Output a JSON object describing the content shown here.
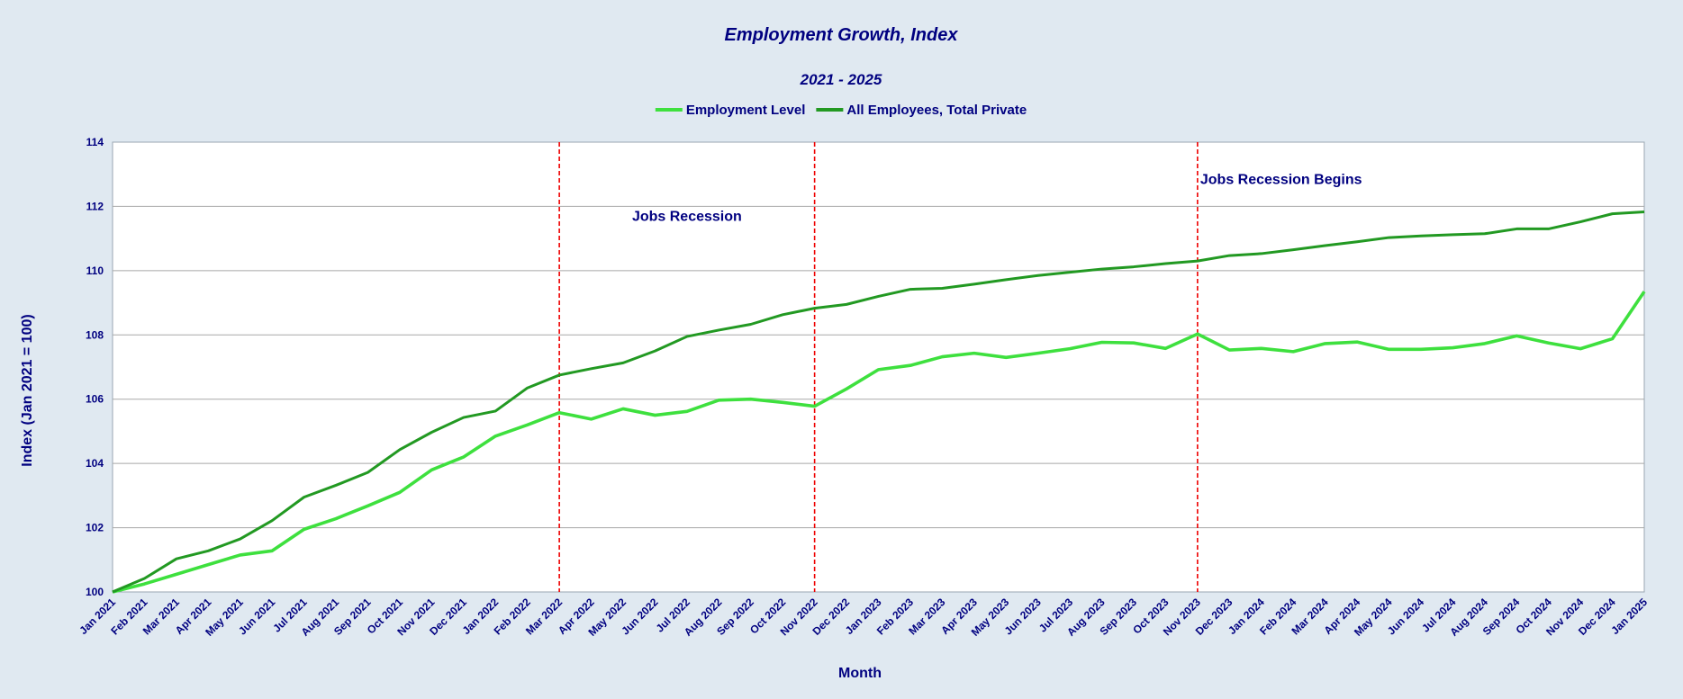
{
  "chart_data": {
    "type": "line",
    "title": "Employment Growth, Index",
    "subtitle": "2021 - 2025",
    "xlabel": "Month",
    "ylabel": "Index (Jan 2021 = 100)",
    "ylim": [
      100,
      114
    ],
    "yticks": [
      100,
      102,
      104,
      106,
      108,
      110,
      112,
      114
    ],
    "grid": true,
    "legend_position": "top-center",
    "categories": [
      "Jan 2021",
      "Feb 2021",
      "Mar 2021",
      "Apr 2021",
      "May 2021",
      "Jun 2021",
      "Jul 2021",
      "Aug 2021",
      "Sep 2021",
      "Oct 2021",
      "Nov 2021",
      "Dec 2021",
      "Jan 2022",
      "Feb 2022",
      "Mar 2022",
      "Apr 2022",
      "May 2022",
      "Jun 2022",
      "Jul 2022",
      "Aug 2022",
      "Sep 2022",
      "Oct 2022",
      "Nov 2022",
      "Dec 2022",
      "Jan 2023",
      "Feb 2023",
      "Mar 2023",
      "Apr 2023",
      "May 2023",
      "Jun 2023",
      "Jul 2023",
      "Aug 2023",
      "Sep 2023",
      "Oct 2023",
      "Nov 2023",
      "Dec 2023",
      "Jan 2024",
      "Feb 2024",
      "Mar 2024",
      "Apr 2024",
      "May 2024",
      "Jun 2024",
      "Jul 2024",
      "Aug 2024",
      "Sep 2024",
      "Oct 2024",
      "Nov 2024",
      "Dec 2024",
      "Jan 2025"
    ],
    "series": [
      {
        "name": "Employment Level",
        "color": "#3ee03e",
        "values": [
          100.0,
          100.25,
          100.55,
          100.85,
          101.15,
          101.28,
          101.95,
          102.28,
          102.68,
          103.1,
          103.8,
          104.2,
          104.85,
          105.2,
          105.58,
          105.38,
          105.7,
          105.5,
          105.62,
          105.97,
          106.0,
          105.9,
          105.78,
          106.32,
          106.92,
          107.05,
          107.32,
          107.43,
          107.3,
          107.43,
          107.57,
          107.77,
          107.75,
          107.58,
          108.03,
          107.53,
          107.58,
          107.48,
          107.73,
          107.78,
          107.55,
          107.55,
          107.6,
          107.73,
          107.97,
          107.75,
          107.57,
          107.88,
          109.35
        ]
      },
      {
        "name": "All Employees, Total Private",
        "color": "#229922",
        "values": [
          100.0,
          100.42,
          101.03,
          101.28,
          101.65,
          102.22,
          102.95,
          103.32,
          103.72,
          104.43,
          104.97,
          105.43,
          105.63,
          106.35,
          106.75,
          106.95,
          107.13,
          107.5,
          107.95,
          108.15,
          108.33,
          108.63,
          108.83,
          108.95,
          109.2,
          109.42,
          109.45,
          109.58,
          109.72,
          109.85,
          109.95,
          110.05,
          110.12,
          110.22,
          110.3,
          110.47,
          110.53,
          110.65,
          110.78,
          110.9,
          111.03,
          111.08,
          111.12,
          111.15,
          111.3,
          111.3,
          111.52,
          111.77,
          111.83
        ]
      }
    ],
    "annotations": [
      {
        "x": "Mar 2022",
        "y": 111.55,
        "text": "",
        "line_color": "#ee0000"
      },
      {
        "x": "Nov 2022",
        "y": 111.55,
        "text": "Jobs Recession",
        "line_color": "#ee0000",
        "text_x": "Jul 2022"
      },
      {
        "x": "Nov 2023",
        "y": 112.7,
        "text": "Jobs Recession Begins",
        "line_color": "#ee0000",
        "text_x": "Nov 2023"
      }
    ]
  }
}
